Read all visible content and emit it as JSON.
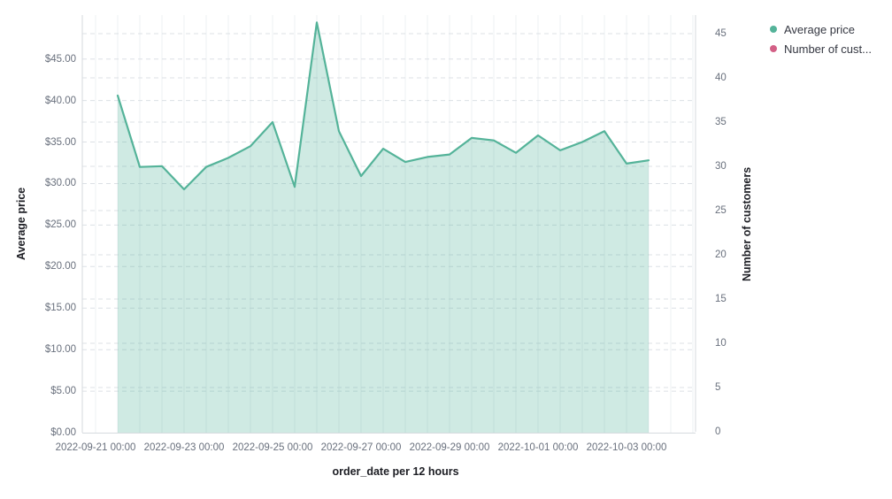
{
  "chart_data": {
    "type": "area",
    "title": "",
    "xlabel": "order_date per 12 hours",
    "grid": true,
    "legend_position": "top-right",
    "x_tick_labels": [
      "2022-09-21 00:00",
      "2022-09-23 00:00",
      "2022-09-25 00:00",
      "2022-09-27 00:00",
      "2022-09-29 00:00",
      "2022-10-01 00:00",
      "2022-10-03 00:00"
    ],
    "left_axis": {
      "title": "Average price",
      "tick_labels": [
        "$0.00",
        "$5.00",
        "$10.00",
        "$15.00",
        "$20.00",
        "$25.00",
        "$30.00",
        "$35.00",
        "$40.00",
        "$45.00"
      ],
      "tick_values": [
        0,
        5,
        10,
        15,
        20,
        25,
        30,
        35,
        40,
        45
      ],
      "range": [
        0,
        50.3
      ]
    },
    "right_axis": {
      "title": "Number of customers",
      "tick_labels": [
        "0",
        "5",
        "10",
        "15",
        "20",
        "25",
        "30",
        "35",
        "40",
        "45"
      ],
      "tick_values": [
        0,
        5,
        10,
        15,
        20,
        25,
        30,
        35,
        40,
        45
      ],
      "range": [
        0,
        47.1
      ]
    },
    "x": [
      "2022-09-21 12:00",
      "2022-09-22 00:00",
      "2022-09-22 12:00",
      "2022-09-23 00:00",
      "2022-09-23 12:00",
      "2022-09-24 00:00",
      "2022-09-24 12:00",
      "2022-09-25 00:00",
      "2022-09-25 12:00",
      "2022-09-26 00:00",
      "2022-09-26 12:00",
      "2022-09-27 00:00",
      "2022-09-27 12:00",
      "2022-09-28 00:00",
      "2022-09-28 12:00",
      "2022-09-29 00:00",
      "2022-09-29 12:00",
      "2022-09-30 00:00",
      "2022-09-30 12:00",
      "2022-10-01 00:00",
      "2022-10-01 12:00",
      "2022-10-02 00:00",
      "2022-10-02 12:00",
      "2022-10-03 00:00",
      "2022-10-03 12:00"
    ],
    "series": [
      {
        "name": "Average price",
        "legend_label": "Average price",
        "color": "#54B399",
        "fill_opacity": 0.28,
        "visible_in_plot": true,
        "values": [
          40.6,
          32.0,
          32.1,
          29.3,
          32.0,
          33.1,
          34.5,
          37.4,
          29.6,
          49.4,
          36.3,
          30.9,
          34.2,
          32.6,
          33.2,
          33.5,
          35.5,
          35.2,
          33.7,
          35.8,
          34.0,
          35.0,
          36.3,
          32.4,
          32.8
        ]
      },
      {
        "name": "Number of customers",
        "legend_label": "Number of cust...",
        "color": "#D36086",
        "visible_in_plot": false,
        "values": []
      }
    ]
  },
  "legend": {
    "items": [
      {
        "label": "Average price",
        "color": "#54B399"
      },
      {
        "label": "Number of cust...",
        "color": "#D36086"
      }
    ]
  },
  "colors": {
    "line": "#54B399",
    "area_fill": "#54B399",
    "series2": "#D36086",
    "tick_label": "#69707D",
    "axis_title": "#1D1E24",
    "grid_dashed": "#DCE0E5",
    "grid_vertical": "#EEF0F3",
    "axis_line": "#D6DADE",
    "background": "#FFFFFF"
  }
}
